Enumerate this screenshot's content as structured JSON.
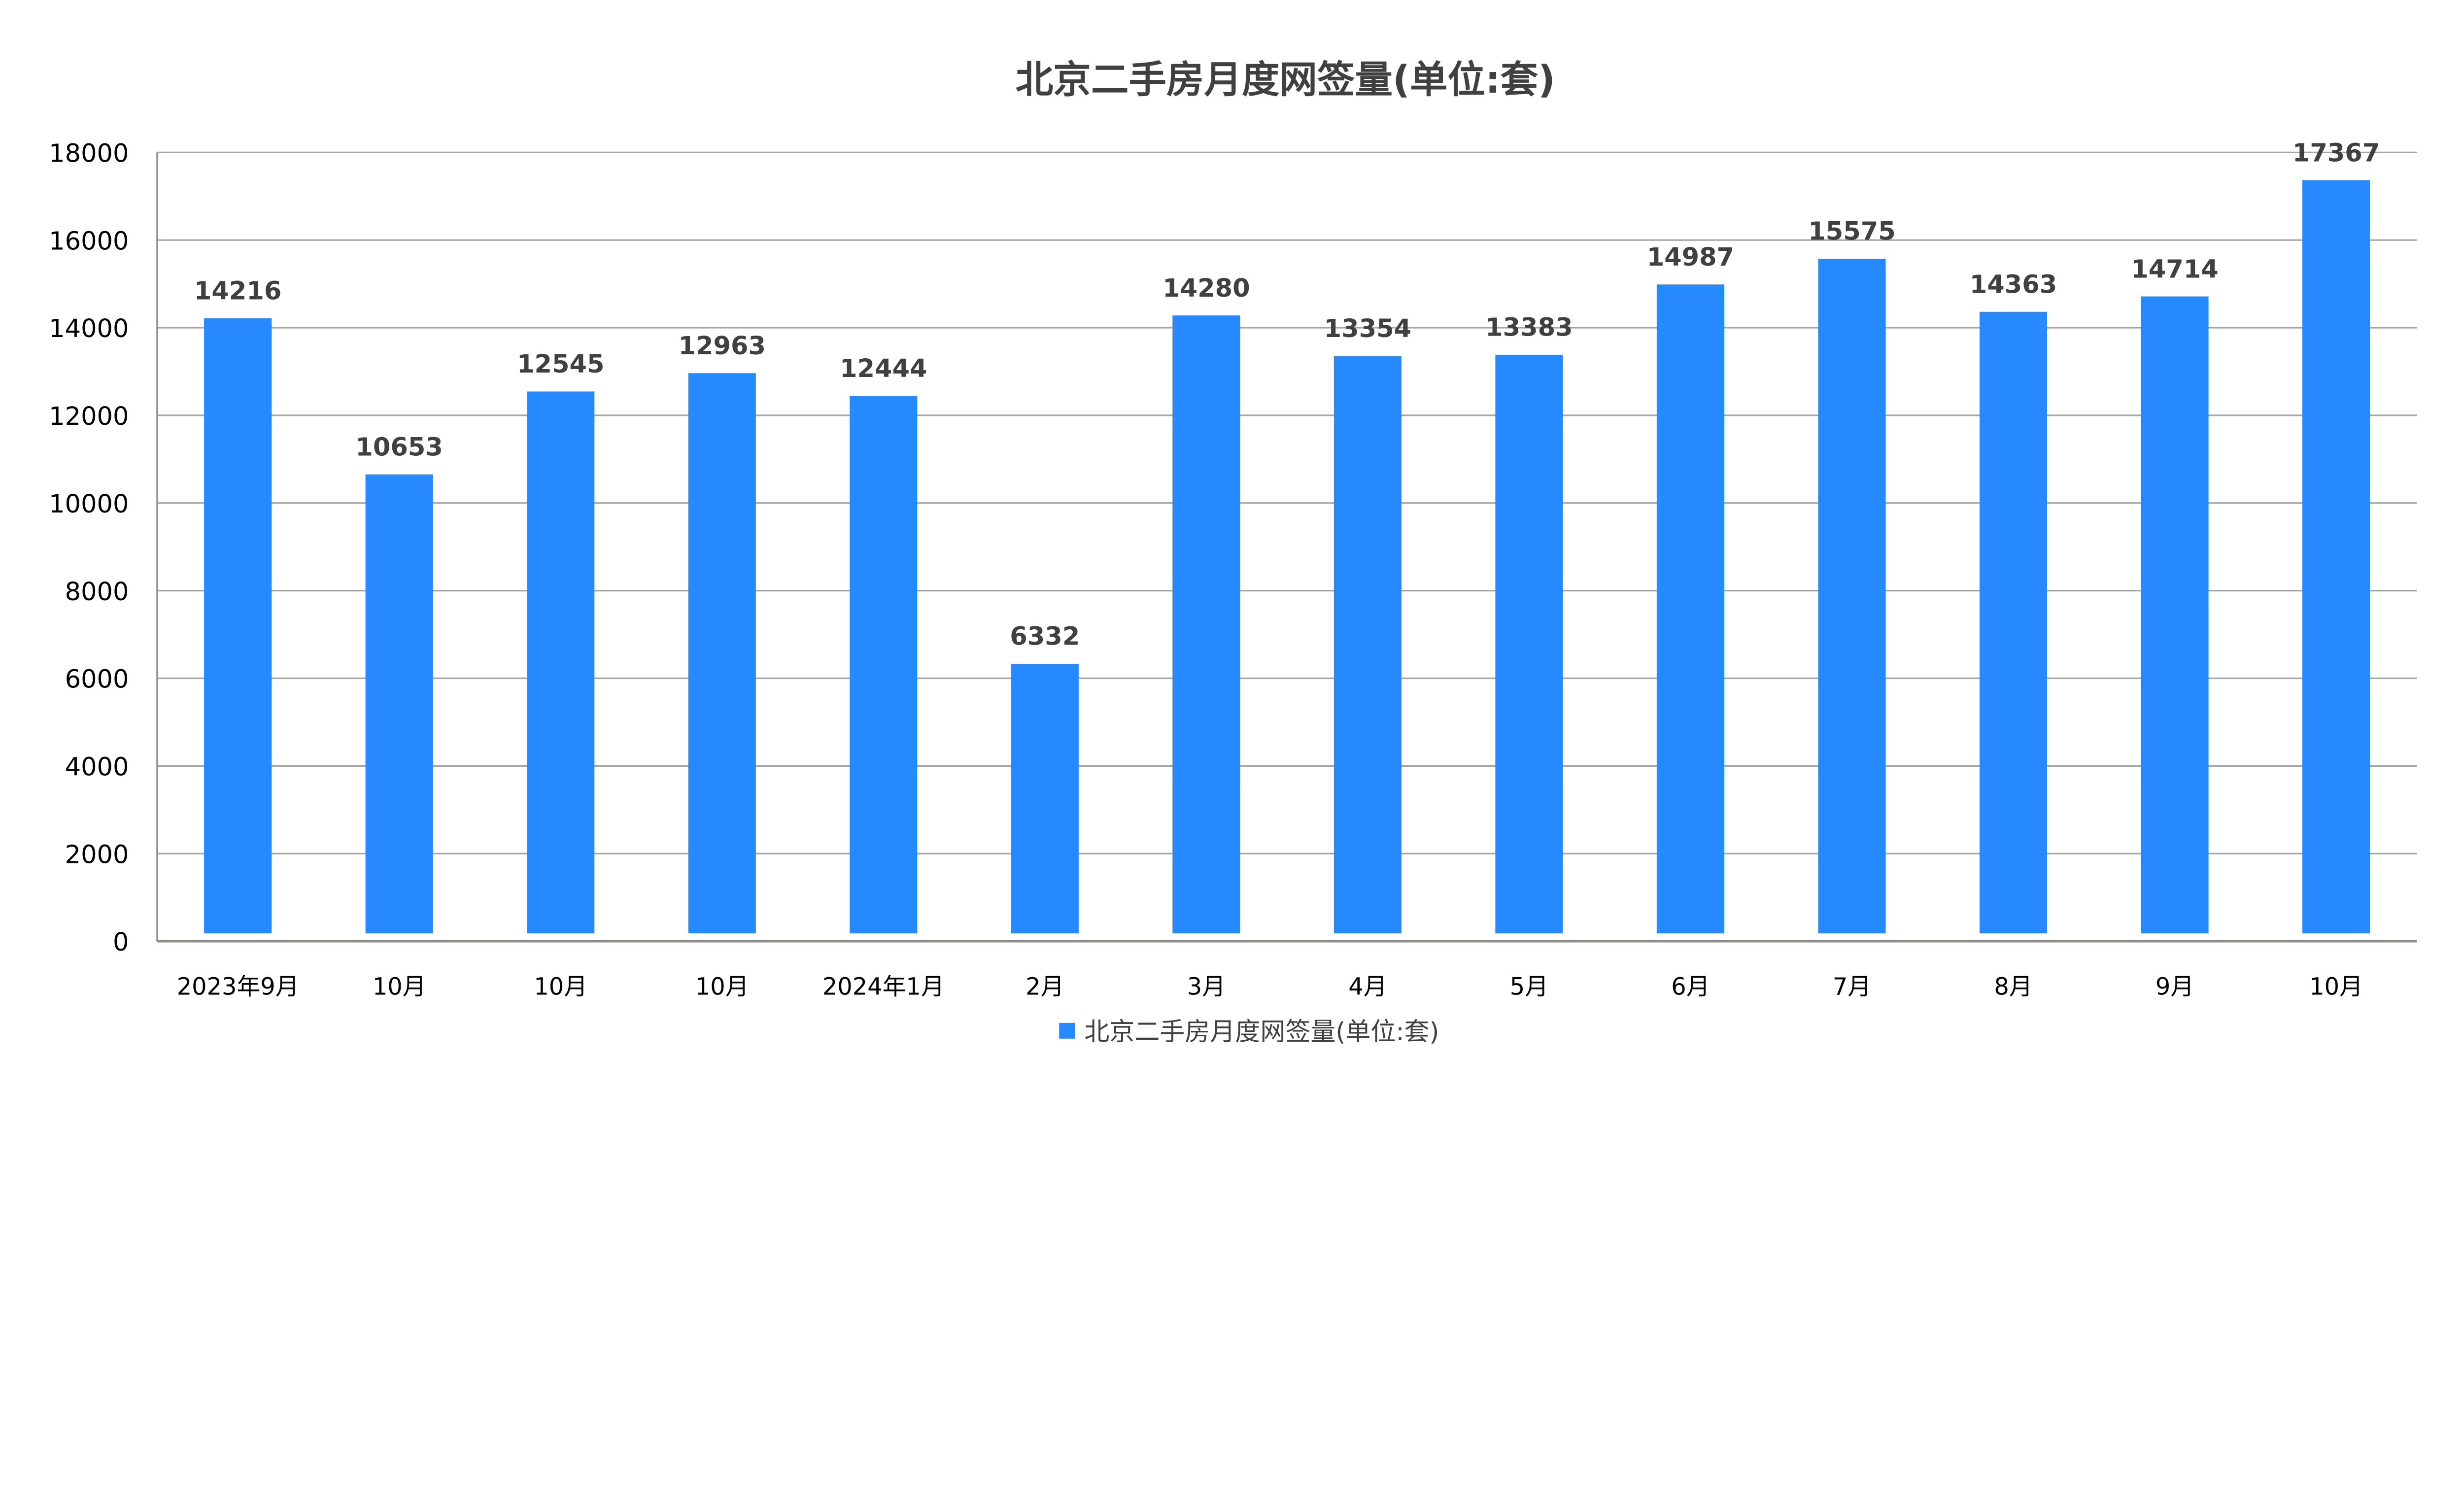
{
  "chart_data": {
    "type": "bar",
    "title": "北京二手房月度网签量(单位:套)",
    "xlabel": "",
    "ylabel": "",
    "categories": [
      "2023年9月",
      "10月",
      "10月",
      "10月",
      "2024年1月",
      "2月",
      "3月",
      "4月",
      "5月",
      "6月",
      "7月",
      "8月",
      "9月",
      "10月"
    ],
    "series": [
      {
        "name": "北京二手房月度网签量(单位:套)",
        "values": [
          14216,
          10653,
          12545,
          12963,
          12444,
          6332,
          14280,
          13354,
          13383,
          14987,
          15575,
          14363,
          14714,
          17367
        ],
        "color": "#2689FF"
      }
    ],
    "ylim": [
      0,
      18000
    ],
    "yticks": [
      "0",
      "2000",
      "4000",
      "6000",
      "8000",
      "10000",
      "12000",
      "14000",
      "16000",
      "18000"
    ],
    "grid": true,
    "legend": "bottom",
    "data_labels": true
  }
}
